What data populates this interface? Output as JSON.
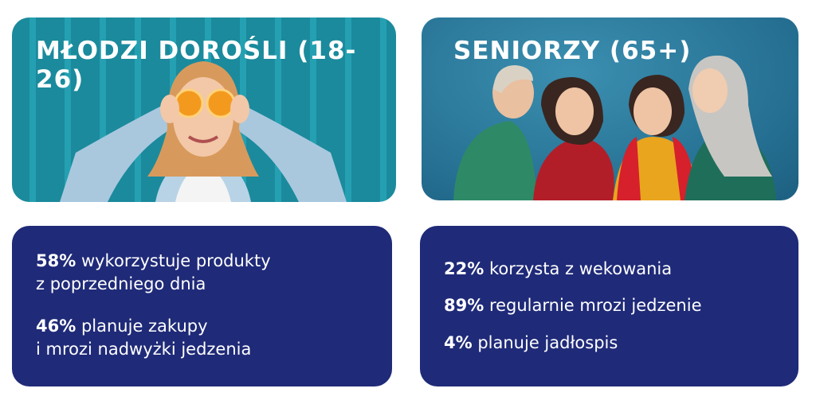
{
  "young": {
    "title": "MŁODZI DOROŚLI (18-26)",
    "stats": [
      {
        "value": "58%",
        "line1": "wykorzystuje produkty",
        "line2": "z poprzedniego dnia"
      },
      {
        "value": "46%",
        "line1": "planuje zakupy",
        "line2": "i mrozi nadwyżki jedzenia"
      }
    ]
  },
  "seniors": {
    "title": "SENIORZY (65+)",
    "stats": [
      {
        "value": "22%",
        "text": "korzysta z wekowania"
      },
      {
        "value": "89%",
        "text": "regularnie mrozi jedzenie"
      },
      {
        "value": "4%",
        "text": "planuje jadłospis"
      }
    ]
  },
  "colors": {
    "navy": "#1f2a78",
    "teal": "#1b8a9c",
    "blue": "#2e7fa0"
  }
}
